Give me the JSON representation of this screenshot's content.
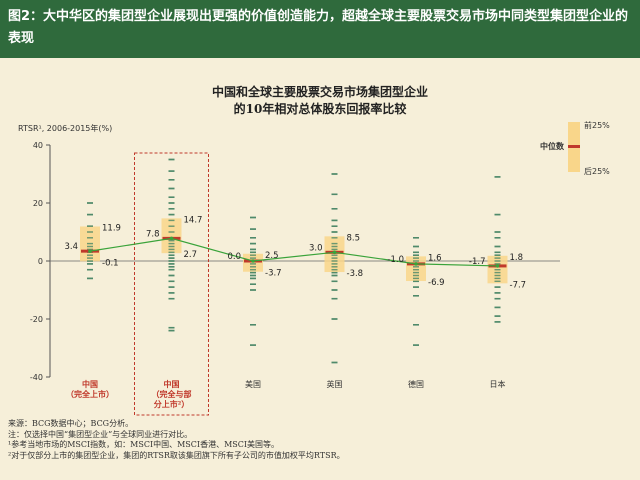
{
  "header": {
    "title": "图2：大中华区的集团型企业展现出更强的价值创造能力，超越全球主要股票交易市场中同类型集团型企业的表现"
  },
  "chart_title": {
    "line1": "中国和全球主要股票交易市场集团型企业",
    "line2": "的10年相对总体股东回报率比较"
  },
  "y_axis_label": "RTSR¹, 2006-2015年(%)",
  "legend": {
    "upper": "前25%",
    "median": "中位数",
    "lower": "后25%"
  },
  "colors": {
    "header_bg": "#2f6a3c",
    "background": "#f6efd9",
    "box": "#f9d68a",
    "median": "#c0392b",
    "line": "#3aa33a",
    "dots": "#4f8a6a",
    "highlight_border": "#c0392b",
    "category_red": "#c0392b"
  },
  "chart_data": {
    "type": "box",
    "ylim": [
      -40,
      40
    ],
    "yticks": [
      -40,
      -20,
      0,
      20,
      40
    ],
    "categories": [
      {
        "label": "中国\n（完全上市）",
        "highlight": false,
        "red": true
      },
      {
        "label": "中国\n（完全与部\n分上市²）",
        "highlight": true,
        "red": true
      },
      {
        "label": "美国",
        "highlight": false,
        "red": false
      },
      {
        "label": "英国",
        "highlight": false,
        "red": false
      },
      {
        "label": "德国",
        "highlight": false,
        "red": false
      },
      {
        "label": "日本",
        "highlight": false,
        "red": false
      }
    ],
    "q75": [
      11.9,
      14.7,
      2.5,
      8.5,
      1.6,
      1.8
    ],
    "median": [
      3.4,
      7.8,
      0.0,
      3.0,
      -1.0,
      -1.7
    ],
    "q25": [
      -0.1,
      2.7,
      -3.7,
      -3.8,
      -6.9,
      -7.7
    ],
    "q75_labels": [
      "11.9",
      "14.7",
      "2.5",
      "8.5",
      "1.6",
      "1.8"
    ],
    "median_labels": [
      "3.4",
      "7.8",
      "0.0",
      "3.0",
      "-1.0",
      "-1.7"
    ],
    "q25_labels": [
      "-0.1",
      "2.7",
      "-3.7",
      "-3.8",
      "-6.9",
      "-7.7"
    ],
    "points": [
      [
        20,
        16,
        12,
        10,
        8,
        6,
        5,
        4,
        3,
        2,
        1,
        0,
        -1,
        -3,
        -6
      ],
      [
        35,
        31,
        28,
        25,
        22,
        20,
        18,
        16,
        14,
        12,
        10,
        8,
        7,
        6,
        5,
        4,
        3,
        2,
        1,
        0,
        -1,
        -2,
        -3,
        -5,
        -7,
        -9,
        -11,
        -13,
        -23,
        -24
      ],
      [
        15,
        11,
        8,
        6,
        4,
        3,
        2,
        1,
        0,
        -1,
        -2,
        -3,
        -4,
        -5,
        -6,
        -8,
        -10,
        -22,
        -29
      ],
      [
        30,
        23,
        18,
        14,
        12,
        10,
        8,
        6,
        5,
        4,
        3,
        2,
        1,
        0,
        -1,
        -2,
        -3,
        -4,
        -5,
        -7,
        -10,
        -13,
        -20,
        -35
      ],
      [
        8,
        5,
        3,
        2,
        1,
        0,
        -1,
        -2,
        -3,
        -4,
        -5,
        -6,
        -7,
        -9,
        -12,
        -22,
        -29
      ],
      [
        29,
        16,
        10,
        8,
        5,
        3,
        2,
        1,
        0,
        -1,
        -2,
        -3,
        -4,
        -5,
        -6,
        -7,
        -9,
        -11,
        -13,
        -16,
        -19,
        -21
      ]
    ]
  },
  "notes": [
    "来源：BCG数据中心；BCG分析。",
    "注：仅选择中国“集团型企业”与全球同业进行对比。",
    "¹参考当地市场的MSCI指数，如：MSCI中国、MSCI香港、MSCI美国等。",
    "²对于仅部分上市的集团型企业，集团的RTSR取该集团旗下所有子公司的市值加权平均RTSR。"
  ]
}
